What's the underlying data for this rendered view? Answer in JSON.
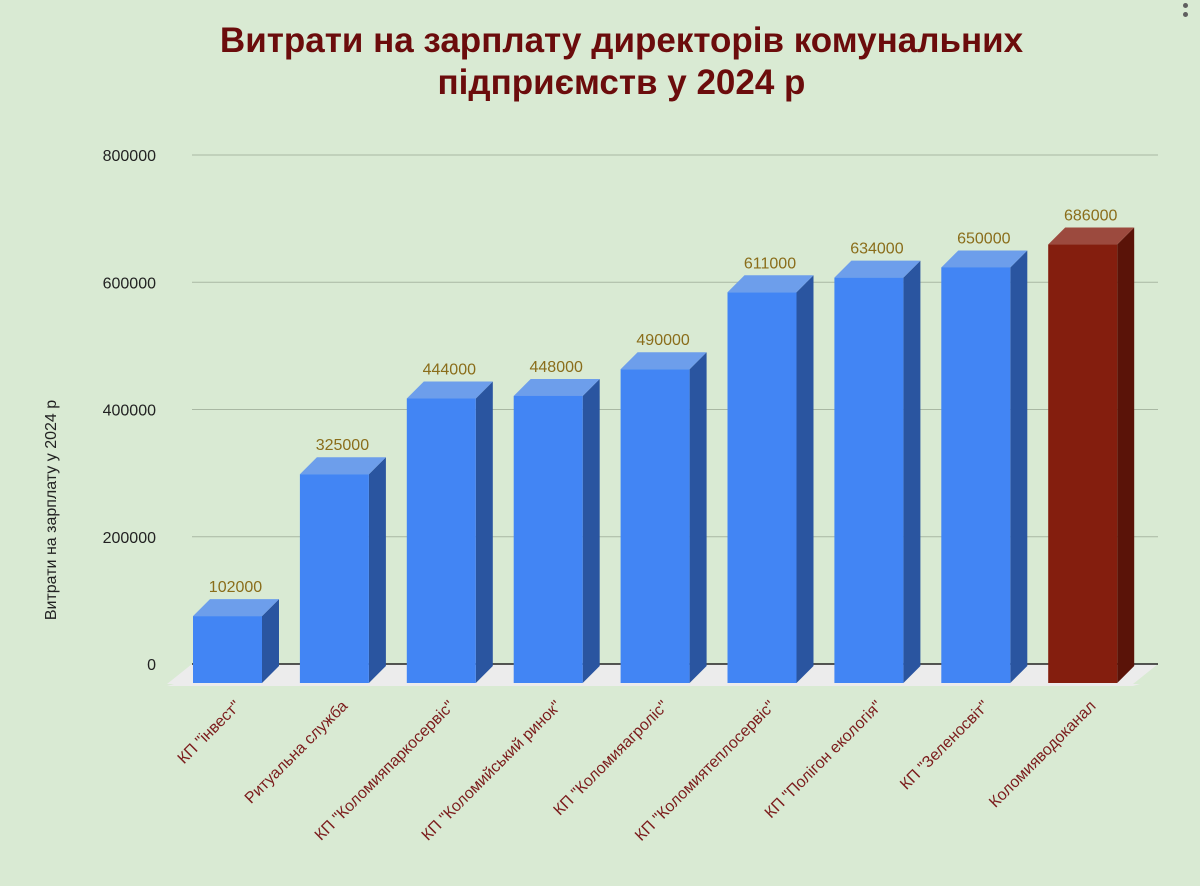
{
  "title": "Витрати на зарплату директорів комунальних підприємств у 2024 р",
  "title_lines": [
    "Витрати на зарплату директорів комунальних",
    "підприємств у 2024 р"
  ],
  "menu_icon": "kebab-menu-icon",
  "colors": {
    "background": "#d9ead3",
    "title": "#6b0c0c",
    "bar_front": "#4285f4",
    "bar_top": "#6d9eeb",
    "bar_side": "#2a55a0",
    "highlight_front": "#841e0e",
    "highlight_top": "#9c4a3e",
    "highlight_side": "#5a1308",
    "data_label": "#8a6d1a",
    "category_label": "#7b1c1c",
    "floor": "#ececec",
    "grid": "#a9b8a3"
  },
  "chart_data": {
    "type": "bar",
    "style": "3d-column",
    "title": "Витрати на зарплату директорів комунальних підприємств у 2024 р",
    "xlabel": "",
    "ylabel": "Витрати на зарплату  у 2024 р",
    "ylim": [
      0,
      800000
    ],
    "yticks": [
      "0",
      "200000",
      "400000",
      "600000",
      "800000"
    ],
    "grid": true,
    "legend": "none",
    "categories": [
      "КП \"інвест\"",
      "Ритуальна служба",
      "КП \"Коломияпаркосервіс\"",
      "КП \"Коломийський ринок\"",
      "КП \"Коломияагроліс\"",
      "КП \"Коломиятеплосервіс\"",
      "КП \"Полігон екологія\"",
      "КП \"Зеленосвіт\"",
      "Коломияводоканал"
    ],
    "values": [
      102000,
      325000,
      444000,
      448000,
      490000,
      611000,
      634000,
      650000,
      686000
    ],
    "data_labels": [
      "102000",
      "325000",
      "444000",
      "448000",
      "490000",
      "611000",
      "634000",
      "650000",
      "686000"
    ],
    "highlighted_index": 8
  }
}
